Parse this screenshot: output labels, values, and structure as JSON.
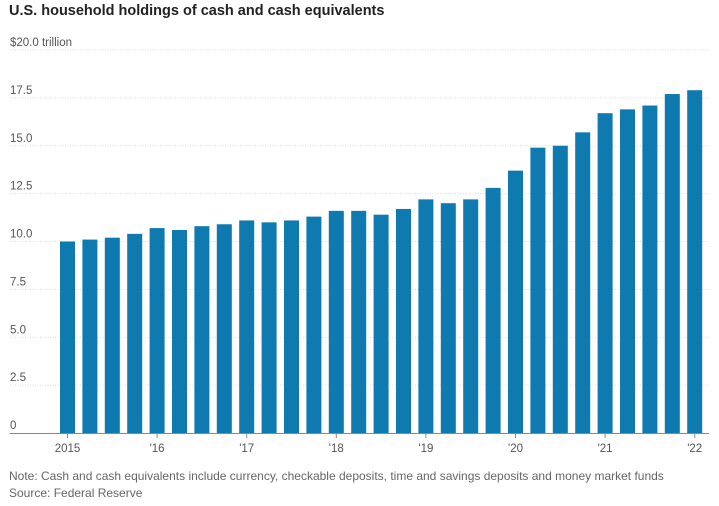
{
  "chart_data": {
    "type": "bar",
    "title": "U.S. household holdings of cash and cash equivalents",
    "ylim": [
      0,
      20
    ],
    "y_ticks": [
      0,
      2.5,
      5,
      7.5,
      10,
      12.5,
      15,
      17.5,
      20
    ],
    "y_tick_labels": [
      "0",
      "2.5",
      "5.0",
      "7.5",
      "10.0",
      "12.5",
      "15.0",
      "17.5",
      "$20.0 trillion"
    ],
    "x_tick_labels": [
      "2015",
      "'16",
      "'17",
      "'18",
      "'19",
      "'20",
      "'21",
      "'22"
    ],
    "x_tick_positions": [
      0,
      4,
      8,
      12,
      16,
      20,
      24,
      28
    ],
    "grid": true,
    "color": "#0f7ab0",
    "series": [
      {
        "values": [
          10.0,
          10.1,
          10.2,
          10.4,
          10.7,
          10.6,
          10.8,
          10.9,
          11.1,
          11.0,
          11.1,
          11.3,
          11.6,
          11.6,
          11.4,
          11.7,
          12.2,
          12.0,
          12.2,
          12.8,
          13.7,
          14.9,
          15.0,
          15.7,
          16.7,
          16.9,
          17.1,
          17.7,
          17.9
        ]
      }
    ],
    "note": "Note: Cash and cash equivalents include currency, checkable deposits, time and savings deposits and money market funds",
    "source": "Source: Federal Reserve"
  }
}
